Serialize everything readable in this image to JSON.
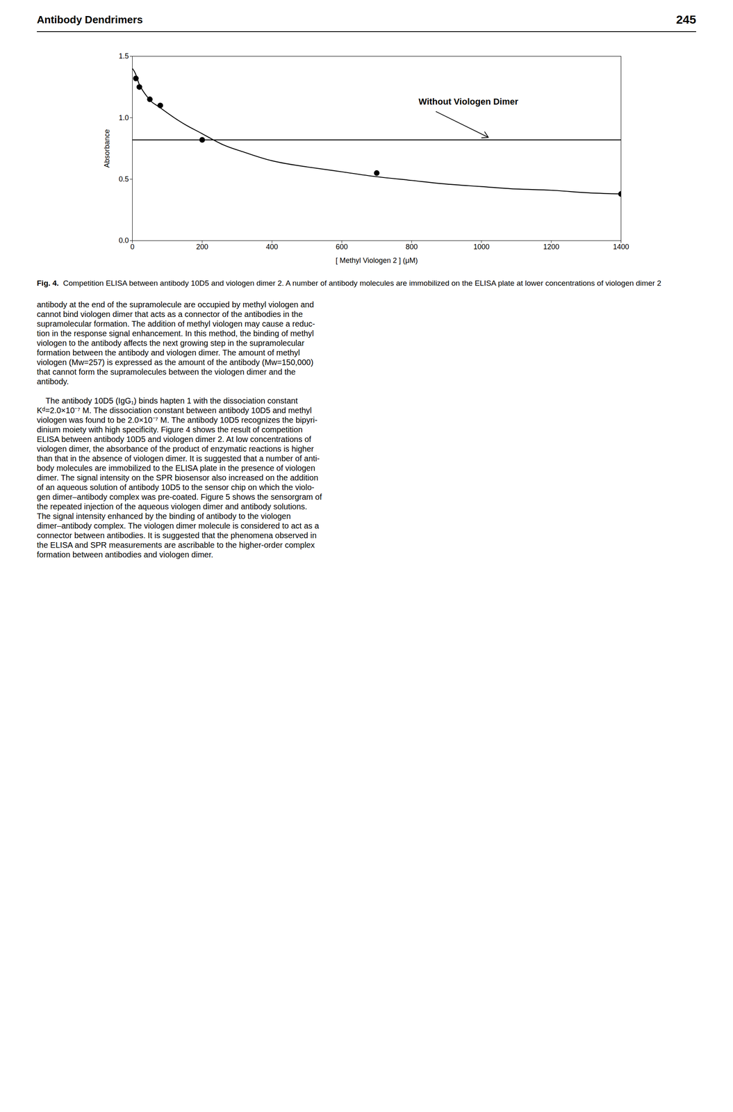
{
  "header_left": "Antibody Dendrimers",
  "header_right": "245",
  "chart_data": {
    "type": "scatter",
    "xlabel": "[ Methyl Viologen 2 ] (μM)",
    "ylabel": "Absorbance",
    "xlim": [
      0,
      1400
    ],
    "ylim": [
      0,
      1.5
    ],
    "xticks": [
      0,
      200,
      400,
      600,
      800,
      1000,
      1200,
      1400
    ],
    "yticks": [
      {
        "value": 0,
        "label": "0.0"
      },
      0.5,
      {
        "value": 1,
        "label": "1.0"
      },
      1.5
    ],
    "grid": false,
    "series": [
      {
        "type": "scatter",
        "marker": "circle",
        "color": "black",
        "x": [
          10,
          20,
          50,
          80,
          200,
          700,
          1400
        ],
        "values": [
          1.32,
          1.25,
          1.15,
          1.1,
          0.82,
          0.55,
          0.38
        ]
      },
      {
        "type": "line",
        "line_style": "solid",
        "color": "black",
        "x": [
          0,
          5,
          10,
          15,
          20,
          30,
          40,
          55,
          70,
          90,
          120,
          160,
          200,
          260,
          320,
          400,
          500,
          600,
          700,
          800,
          900,
          1000,
          1100,
          1200,
          1300,
          1400
        ],
        "values": [
          1.4,
          1.38,
          1.35,
          1.31,
          1.27,
          1.22,
          1.18,
          1.13,
          1.1,
          1.06,
          1.0,
          0.93,
          0.87,
          0.78,
          0.72,
          0.65,
          0.6,
          0.56,
          0.52,
          0.49,
          0.46,
          0.44,
          0.42,
          0.41,
          0.39,
          0.38
        ]
      }
    ],
    "hline": 0.82,
    "annotations": [
      {
        "text": "Without Viologen Dimer",
        "x": 820,
        "y": 1.13,
        "arrow_from": [
          870,
          1.05
        ],
        "arrow_to": [
          1020,
          0.84
        ]
      }
    ]
  },
  "caption_bold": "Fig. 4.",
  "caption_text": "  Competition ELISA between antibody 10D5 and viologen dimer 2. A number of antibody molecules are immobilized on the ELISA plate at lower concentrations of viologen dimer 2",
  "body_paragraphs": [
    [
      "antibody at the end of the supramolecule are occupied by methyl viologen and",
      "cannot bind viologen dimer that acts as a connector of the antibodies in the",
      "supramolecular formation. The addition of methyl viologen may cause a reduc-",
      "tion in the response signal enhancement. In this method, the binding of methyl",
      "viologen to the antibody affects the next growing step in the supramolecular",
      "formation between the antibody and viologen dimer. The amount of methyl",
      "viologen (Mw=257) is expressed as the amount of the antibody (Mw=150,000)",
      "that cannot form the supramolecules between the viologen dimer and the",
      "antibody."
    ],
    [
      "    The antibody 10D5 (IgG₁) binds hapten 1 with the dissociation constant",
      "Kᵈ=2.0×10⁻⁷ M. The dissociation constant between antibody 10D5 and methyl",
      "viologen was found to be 2.0×10⁻⁷ M. The antibody 10D5 recognizes the bipyri-",
      "dinium moiety with high specificity. Figure 4 shows the result of competition",
      "ELISA between antibody 10D5 and viologen dimer 2. At low concentrations of",
      "viologen dimer, the absorbance of the product of enzymatic reactions is higher",
      "than that in the absence of viologen dimer. It is suggested that a number of anti-",
      "body molecules are immobilized to the ELISA plate in the presence of viologen",
      "dimer. The signal intensity on the SPR biosensor also increased on the addition",
      "of an aqueous solution of antibody 10D5 to the sensor chip on which the violo-",
      "gen dimer–antibody complex was pre-coated. Figure 5 shows the sensorgram of",
      "the repeated injection of the aqueous viologen dimer and antibody solutions.",
      "The signal intensity enhanced by the binding of antibody to the viologen",
      "dimer–antibody complex. The viologen dimer molecule is considered to act as a",
      "connector between antibodies. It is suggested that the phenomena observed in",
      "the ELISA and SPR measurements are ascribable to the higher-order complex",
      "formation between antibodies and viologen dimer."
    ]
  ]
}
